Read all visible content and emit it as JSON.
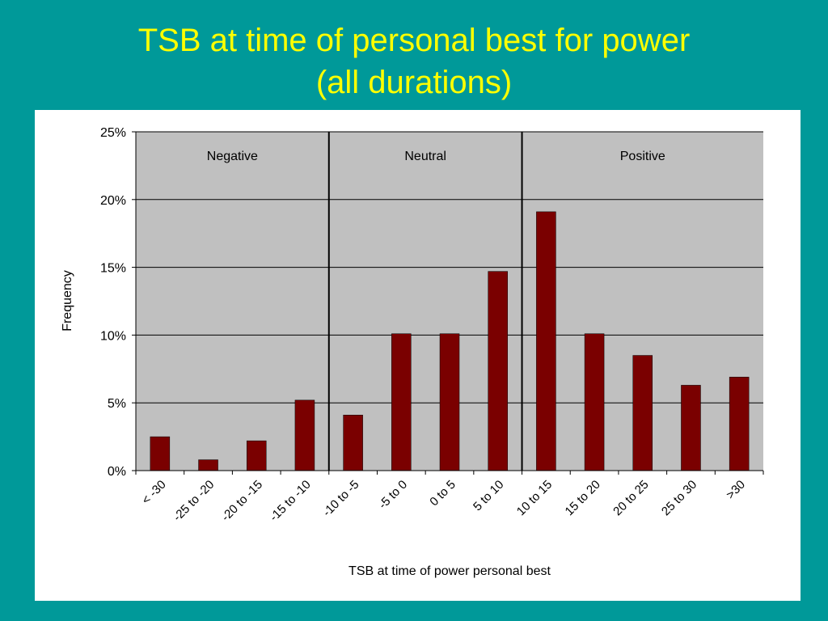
{
  "slide": {
    "title_line1": "TSB at time of personal best for power",
    "title_line2": "(all durations)"
  },
  "chart_data": {
    "type": "bar",
    "categories": [
      "< -30",
      "-25 to -20",
      "-20 to -15",
      "-15 to -10",
      "-10 to -5",
      "-5 to 0",
      "0 to 5",
      "5 to 10",
      "10 to 15",
      "15 to 20",
      "20 to 25",
      "25 to 30",
      ">30"
    ],
    "values": [
      2.5,
      0.8,
      2.2,
      5.2,
      4.1,
      10.1,
      10.1,
      14.7,
      19.1,
      10.1,
      8.5,
      6.3,
      6.9
    ],
    "title": "",
    "xlabel": "TSB at time of power personal best",
    "ylabel": "Frequency",
    "ylim": [
      0,
      25
    ],
    "yticks": [
      "0%",
      "5%",
      "10%",
      "15%",
      "20%",
      "25%"
    ],
    "grid": true,
    "legend": "none",
    "regions": [
      {
        "label": "Negative",
        "start_index": 0,
        "end_index": 3
      },
      {
        "label": "Neutral",
        "start_index": 4,
        "end_index": 7
      },
      {
        "label": "Positive",
        "start_index": 8,
        "end_index": 12
      }
    ],
    "colors": {
      "bar": "#7a0000",
      "plot_background": "#c0c0c0",
      "slide_background": "#009999",
      "title": "#ffff00"
    }
  }
}
